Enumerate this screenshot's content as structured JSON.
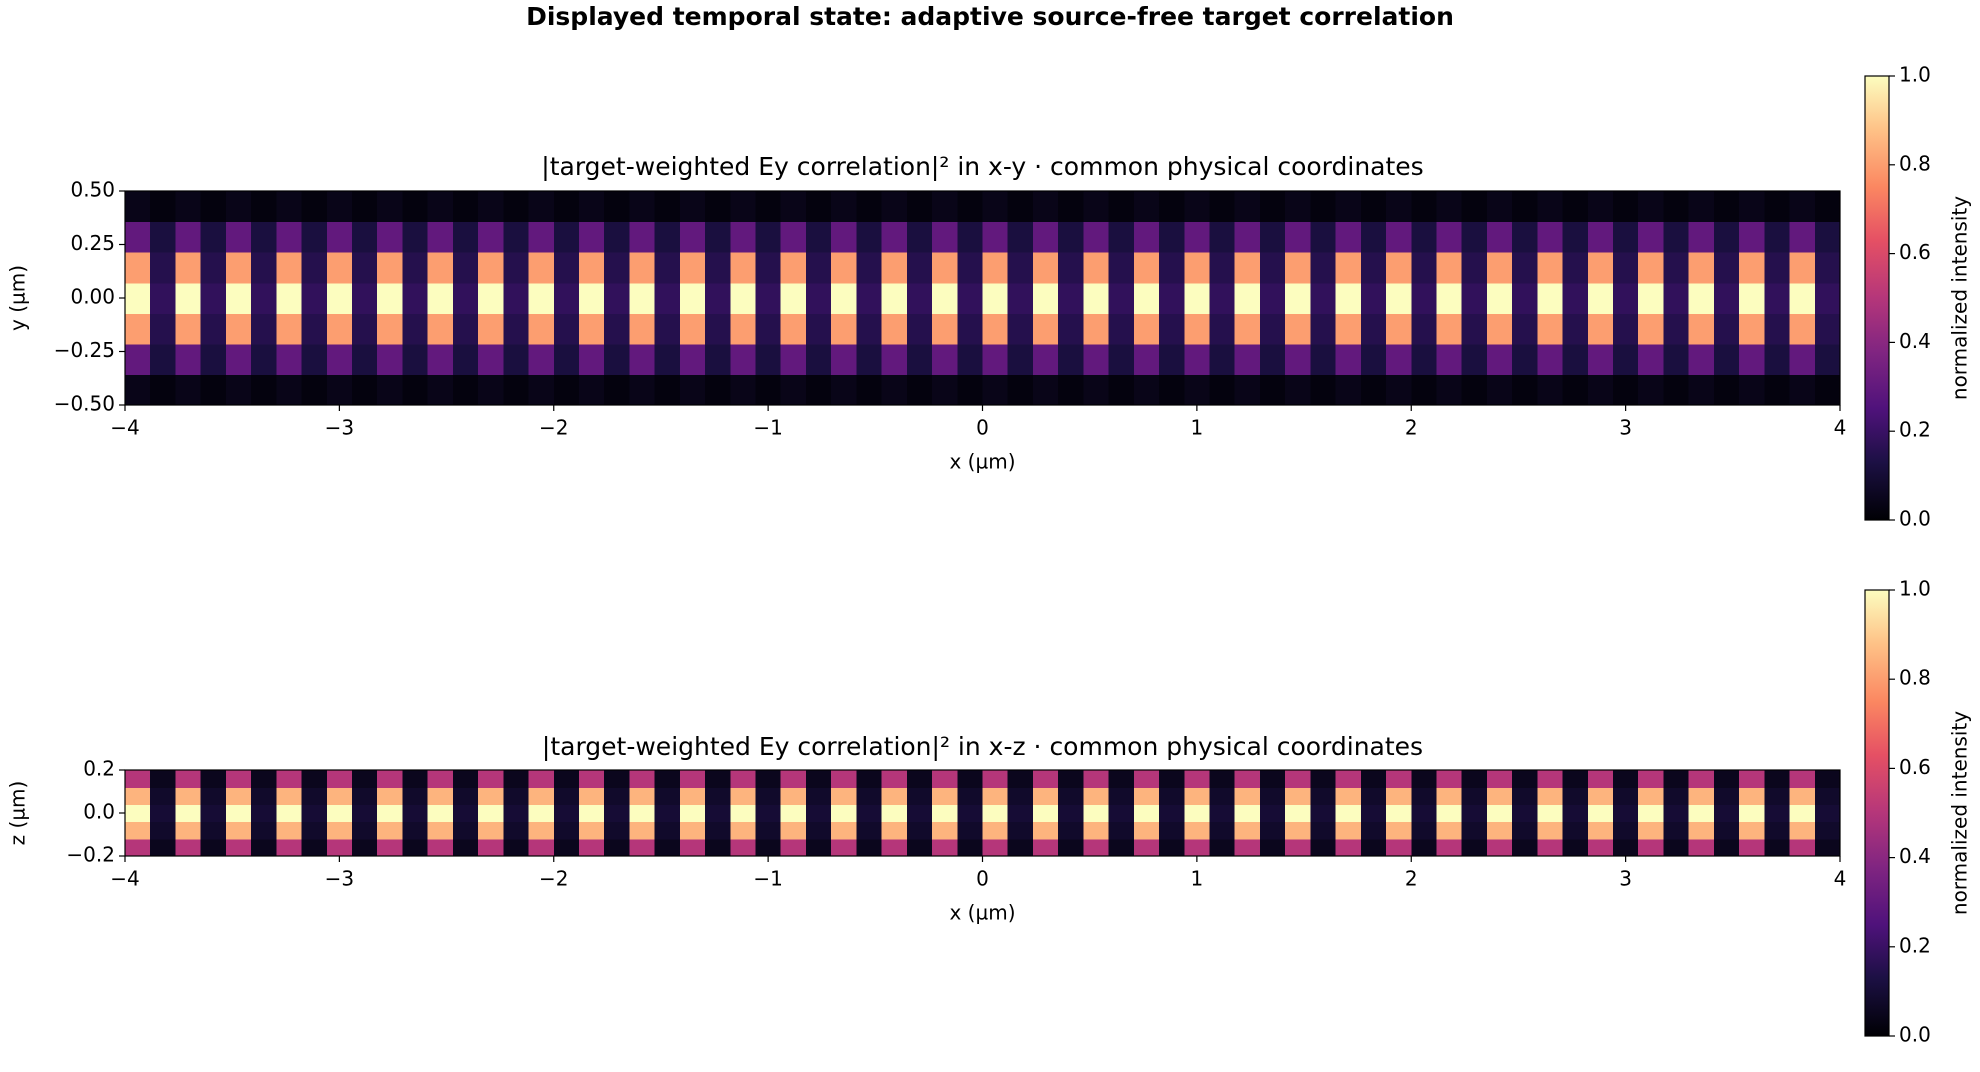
{
  "title": "Displayed temporal state: adaptive source-free target correlation",
  "chart_data": [
    {
      "type": "heatmap",
      "title": "|target-weighted Ey correlation|² in x-y · common physical coordinates",
      "xlabel": "x (µm)",
      "ylabel": "y (µm)",
      "xlim": [
        -4,
        4
      ],
      "ylim": [
        -0.5,
        0.5
      ],
      "xticks": [
        {
          "value": -4,
          "label": "−4"
        },
        {
          "value": -3,
          "label": "−3"
        },
        {
          "value": -2,
          "label": "−2"
        },
        {
          "value": -1,
          "label": "−1"
        },
        0,
        1,
        2,
        3,
        4
      ],
      "yticks": [
        {
          "value": -0.5,
          "label": "−0.50"
        },
        {
          "value": -0.25,
          "label": "−0.25"
        },
        {
          "value": 0,
          "label": "0.00"
        },
        {
          "value": 0.25,
          "label": "0.25"
        },
        {
          "value": 0.5,
          "label": "0.50"
        }
      ],
      "colormap": "magma",
      "clim": [
        0,
        1
      ],
      "colorbar_label": "normalized intensity",
      "colorbar_ticks": [
        {
          "value": 0,
          "label": "0.0"
        },
        {
          "value": 0.2,
          "label": "0.2"
        },
        {
          "value": 0.4,
          "label": "0.4"
        },
        {
          "value": 0.6,
          "label": "0.6"
        },
        {
          "value": 0.8,
          "label": "0.8"
        },
        {
          "value": 1,
          "label": "1.0"
        }
      ],
      "values": [
        [
          0.04,
          0.02,
          0.04,
          0.02,
          0.04,
          0.02,
          0.04,
          0.02,
          0.04,
          0.02,
          0.04,
          0.02,
          0.04,
          0.02,
          0.04,
          0.02,
          0.04,
          0.02,
          0.04,
          0.02,
          0.04,
          0.02,
          0.04,
          0.02,
          0.04,
          0.02,
          0.04,
          0.02,
          0.04,
          0.02,
          0.04,
          0.02,
          0.04,
          0.02,
          0.04,
          0.02,
          0.04,
          0.02,
          0.04,
          0.02,
          0.04,
          0.02,
          0.04,
          0.02,
          0.04,
          0.02,
          0.04,
          0.02,
          0.04,
          0.02,
          0.04,
          0.02,
          0.04,
          0.02,
          0.04,
          0.02,
          0.04,
          0.02,
          0.04,
          0.02,
          0.04,
          0.02,
          0.04,
          0.02,
          0.04,
          0.02,
          0.04,
          0.02
        ],
        [
          0.3,
          0.12,
          0.3,
          0.12,
          0.3,
          0.12,
          0.3,
          0.12,
          0.3,
          0.12,
          0.3,
          0.12,
          0.3,
          0.12,
          0.3,
          0.12,
          0.3,
          0.12,
          0.3,
          0.12,
          0.3,
          0.12,
          0.3,
          0.12,
          0.3,
          0.12,
          0.3,
          0.12,
          0.3,
          0.12,
          0.3,
          0.12,
          0.3,
          0.12,
          0.3,
          0.12,
          0.3,
          0.12,
          0.3,
          0.12,
          0.3,
          0.12,
          0.3,
          0.12,
          0.3,
          0.12,
          0.3,
          0.12,
          0.3,
          0.12,
          0.3,
          0.12,
          0.3,
          0.12,
          0.3,
          0.12,
          0.3,
          0.12,
          0.3,
          0.12,
          0.3,
          0.12,
          0.3,
          0.12,
          0.3,
          0.12,
          0.3,
          0.12
        ],
        [
          0.8,
          0.15,
          0.8,
          0.15,
          0.8,
          0.15,
          0.8,
          0.15,
          0.8,
          0.15,
          0.8,
          0.15,
          0.8,
          0.15,
          0.8,
          0.15,
          0.8,
          0.15,
          0.8,
          0.15,
          0.8,
          0.15,
          0.8,
          0.15,
          0.8,
          0.15,
          0.8,
          0.15,
          0.8,
          0.15,
          0.8,
          0.15,
          0.8,
          0.15,
          0.8,
          0.15,
          0.8,
          0.15,
          0.8,
          0.15,
          0.8,
          0.15,
          0.8,
          0.15,
          0.8,
          0.15,
          0.8,
          0.15,
          0.8,
          0.15,
          0.8,
          0.15,
          0.8,
          0.15,
          0.8,
          0.15,
          0.8,
          0.15,
          0.8,
          0.15,
          0.8,
          0.15,
          0.8,
          0.15,
          0.8,
          0.15,
          0.8,
          0.15
        ],
        [
          1.0,
          0.18,
          1.0,
          0.18,
          1.0,
          0.18,
          1.0,
          0.18,
          1.0,
          0.18,
          1.0,
          0.18,
          1.0,
          0.18,
          1.0,
          0.18,
          1.0,
          0.18,
          1.0,
          0.18,
          1.0,
          0.18,
          1.0,
          0.18,
          1.0,
          0.18,
          1.0,
          0.18,
          1.0,
          0.18,
          1.0,
          0.18,
          1.0,
          0.18,
          1.0,
          0.18,
          1.0,
          0.18,
          1.0,
          0.18,
          1.0,
          0.18,
          1.0,
          0.18,
          1.0,
          0.18,
          1.0,
          0.18,
          1.0,
          0.18,
          1.0,
          0.18,
          1.0,
          0.18,
          1.0,
          0.18,
          1.0,
          0.18,
          1.0,
          0.18,
          1.0,
          0.18,
          1.0,
          0.18,
          1.0,
          0.18,
          1.0,
          0.18
        ],
        [
          0.8,
          0.15,
          0.8,
          0.15,
          0.8,
          0.15,
          0.8,
          0.15,
          0.8,
          0.15,
          0.8,
          0.15,
          0.8,
          0.15,
          0.8,
          0.15,
          0.8,
          0.15,
          0.8,
          0.15,
          0.8,
          0.15,
          0.8,
          0.15,
          0.8,
          0.15,
          0.8,
          0.15,
          0.8,
          0.15,
          0.8,
          0.15,
          0.8,
          0.15,
          0.8,
          0.15,
          0.8,
          0.15,
          0.8,
          0.15,
          0.8,
          0.15,
          0.8,
          0.15,
          0.8,
          0.15,
          0.8,
          0.15,
          0.8,
          0.15,
          0.8,
          0.15,
          0.8,
          0.15,
          0.8,
          0.15,
          0.8,
          0.15,
          0.8,
          0.15,
          0.8,
          0.15,
          0.8,
          0.15,
          0.8,
          0.15,
          0.8,
          0.15
        ],
        [
          0.3,
          0.12,
          0.3,
          0.12,
          0.3,
          0.12,
          0.3,
          0.12,
          0.3,
          0.12,
          0.3,
          0.12,
          0.3,
          0.12,
          0.3,
          0.12,
          0.3,
          0.12,
          0.3,
          0.12,
          0.3,
          0.12,
          0.3,
          0.12,
          0.3,
          0.12,
          0.3,
          0.12,
          0.3,
          0.12,
          0.3,
          0.12,
          0.3,
          0.12,
          0.3,
          0.12,
          0.3,
          0.12,
          0.3,
          0.12,
          0.3,
          0.12,
          0.3,
          0.12,
          0.3,
          0.12,
          0.3,
          0.12,
          0.3,
          0.12,
          0.3,
          0.12,
          0.3,
          0.12,
          0.3,
          0.12,
          0.3,
          0.12,
          0.3,
          0.12,
          0.3,
          0.12,
          0.3,
          0.12,
          0.3,
          0.12,
          0.3,
          0.12
        ],
        [
          0.04,
          0.02,
          0.04,
          0.02,
          0.04,
          0.02,
          0.04,
          0.02,
          0.04,
          0.02,
          0.04,
          0.02,
          0.04,
          0.02,
          0.04,
          0.02,
          0.04,
          0.02,
          0.04,
          0.02,
          0.04,
          0.02,
          0.04,
          0.02,
          0.04,
          0.02,
          0.04,
          0.02,
          0.04,
          0.02,
          0.04,
          0.02,
          0.04,
          0.02,
          0.04,
          0.02,
          0.04,
          0.02,
          0.04,
          0.02,
          0.04,
          0.02,
          0.04,
          0.02,
          0.04,
          0.02,
          0.04,
          0.02,
          0.04,
          0.02,
          0.04,
          0.02,
          0.04,
          0.02,
          0.04,
          0.02,
          0.04,
          0.02,
          0.04,
          0.02,
          0.04,
          0.02,
          0.04,
          0.02,
          0.04,
          0.02,
          0.04,
          0.02
        ]
      ]
    },
    {
      "type": "heatmap",
      "title": "|target-weighted Ey correlation|² in x-z · common physical coordinates",
      "xlabel": "x (µm)",
      "ylabel": "z (µm)",
      "xlim": [
        -4,
        4
      ],
      "ylim": [
        -0.2,
        0.2
      ],
      "xticks": [
        {
          "value": -4,
          "label": "−4"
        },
        {
          "value": -3,
          "label": "−3"
        },
        {
          "value": -2,
          "label": "−2"
        },
        {
          "value": -1,
          "label": "−1"
        },
        0,
        1,
        2,
        3,
        4
      ],
      "yticks": [
        {
          "value": -0.2,
          "label": "−0.2"
        },
        {
          "value": 0,
          "label": "0.0"
        },
        {
          "value": 0.2,
          "label": "0.2"
        }
      ],
      "colormap": "magma",
      "clim": [
        0,
        1
      ],
      "colorbar_label": "normalized intensity",
      "colorbar_ticks": [
        {
          "value": 0,
          "label": "0.0"
        },
        {
          "value": 0.2,
          "label": "0.2"
        },
        {
          "value": 0.4,
          "label": "0.4"
        },
        {
          "value": 0.6,
          "label": "0.6"
        },
        {
          "value": 0.8,
          "label": "0.8"
        },
        {
          "value": 1,
          "label": "1.0"
        }
      ],
      "values": [
        [
          0.5,
          0.05,
          0.5,
          0.05,
          0.5,
          0.05,
          0.5,
          0.05,
          0.5,
          0.05,
          0.5,
          0.05,
          0.5,
          0.05,
          0.5,
          0.05,
          0.5,
          0.05,
          0.5,
          0.05,
          0.5,
          0.05,
          0.5,
          0.05,
          0.5,
          0.05,
          0.5,
          0.05,
          0.5,
          0.05,
          0.5,
          0.05,
          0.5,
          0.05,
          0.5,
          0.05,
          0.5,
          0.05,
          0.5,
          0.05,
          0.5,
          0.05,
          0.5,
          0.05,
          0.5,
          0.05,
          0.5,
          0.05,
          0.5,
          0.05,
          0.5,
          0.05,
          0.5,
          0.05,
          0.5,
          0.05,
          0.5,
          0.05,
          0.5,
          0.05,
          0.5,
          0.05,
          0.5,
          0.05,
          0.5,
          0.05,
          0.5,
          0.05
        ],
        [
          0.85,
          0.08,
          0.85,
          0.08,
          0.85,
          0.08,
          0.85,
          0.08,
          0.85,
          0.08,
          0.85,
          0.08,
          0.85,
          0.08,
          0.85,
          0.08,
          0.85,
          0.08,
          0.85,
          0.08,
          0.85,
          0.08,
          0.85,
          0.08,
          0.85,
          0.08,
          0.85,
          0.08,
          0.85,
          0.08,
          0.85,
          0.08,
          0.85,
          0.08,
          0.85,
          0.08,
          0.85,
          0.08,
          0.85,
          0.08,
          0.85,
          0.08,
          0.85,
          0.08,
          0.85,
          0.08,
          0.85,
          0.08,
          0.85,
          0.08,
          0.85,
          0.08,
          0.85,
          0.08,
          0.85,
          0.08,
          0.85,
          0.08,
          0.85,
          0.08,
          0.85,
          0.08,
          0.85,
          0.08,
          0.85,
          0.08,
          0.85,
          0.08
        ],
        [
          1.0,
          0.1,
          1.0,
          0.1,
          1.0,
          0.1,
          1.0,
          0.1,
          1.0,
          0.1,
          1.0,
          0.1,
          1.0,
          0.1,
          1.0,
          0.1,
          1.0,
          0.1,
          1.0,
          0.1,
          1.0,
          0.1,
          1.0,
          0.1,
          1.0,
          0.1,
          1.0,
          0.1,
          1.0,
          0.1,
          1.0,
          0.1,
          1.0,
          0.1,
          1.0,
          0.1,
          1.0,
          0.1,
          1.0,
          0.1,
          1.0,
          0.1,
          1.0,
          0.1,
          1.0,
          0.1,
          1.0,
          0.1,
          1.0,
          0.1,
          1.0,
          0.1,
          1.0,
          0.1,
          1.0,
          0.1,
          1.0,
          0.1,
          1.0,
          0.1,
          1.0,
          0.1,
          1.0,
          0.1,
          1.0,
          0.1,
          1.0,
          0.1
        ],
        [
          0.85,
          0.08,
          0.85,
          0.08,
          0.85,
          0.08,
          0.85,
          0.08,
          0.85,
          0.08,
          0.85,
          0.08,
          0.85,
          0.08,
          0.85,
          0.08,
          0.85,
          0.08,
          0.85,
          0.08,
          0.85,
          0.08,
          0.85,
          0.08,
          0.85,
          0.08,
          0.85,
          0.08,
          0.85,
          0.08,
          0.85,
          0.08,
          0.85,
          0.08,
          0.85,
          0.08,
          0.85,
          0.08,
          0.85,
          0.08,
          0.85,
          0.08,
          0.85,
          0.08,
          0.85,
          0.08,
          0.85,
          0.08,
          0.85,
          0.08,
          0.85,
          0.08,
          0.85,
          0.08,
          0.85,
          0.08,
          0.85,
          0.08,
          0.85,
          0.08,
          0.85,
          0.08,
          0.85,
          0.08,
          0.85,
          0.08,
          0.85,
          0.08
        ],
        [
          0.5,
          0.05,
          0.5,
          0.05,
          0.5,
          0.05,
          0.5,
          0.05,
          0.5,
          0.05,
          0.5,
          0.05,
          0.5,
          0.05,
          0.5,
          0.05,
          0.5,
          0.05,
          0.5,
          0.05,
          0.5,
          0.05,
          0.5,
          0.05,
          0.5,
          0.05,
          0.5,
          0.05,
          0.5,
          0.05,
          0.5,
          0.05,
          0.5,
          0.05,
          0.5,
          0.05,
          0.5,
          0.05,
          0.5,
          0.05,
          0.5,
          0.05,
          0.5,
          0.05,
          0.5,
          0.05,
          0.5,
          0.05,
          0.5,
          0.05,
          0.5,
          0.05,
          0.5,
          0.05,
          0.5,
          0.05,
          0.5,
          0.05,
          0.5,
          0.05,
          0.5,
          0.05,
          0.5,
          0.05,
          0.5,
          0.05,
          0.5,
          0.05
        ]
      ]
    }
  ]
}
